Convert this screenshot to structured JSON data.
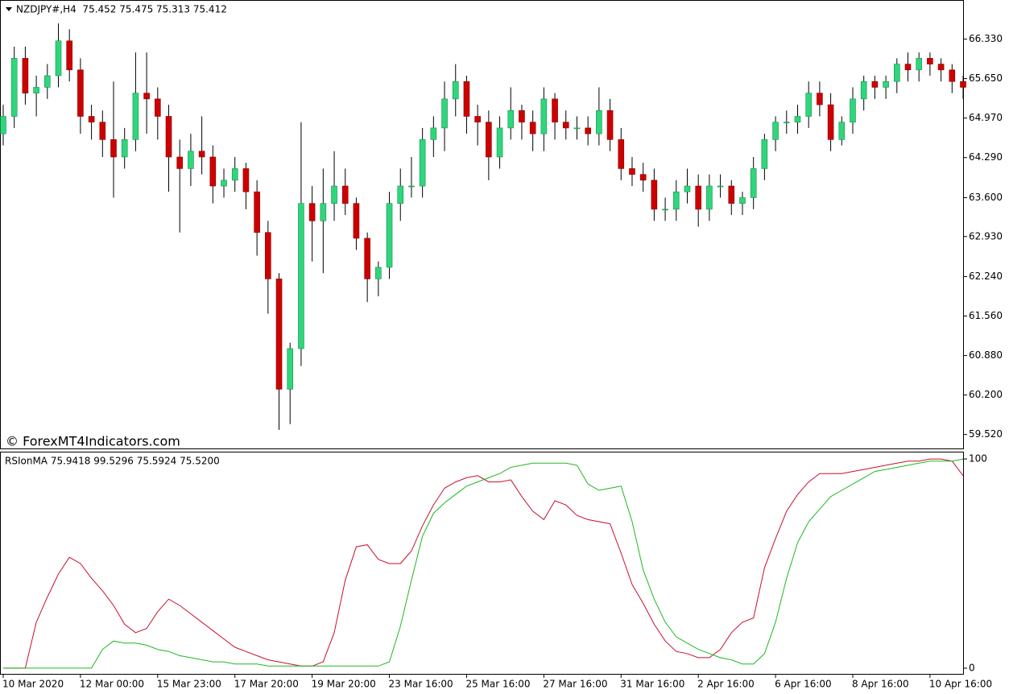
{
  "chart_data": [
    {
      "type": "candlestick",
      "title": "NZDJPY#,H4  75.452 75.475 75.313 75.412",
      "annotation": "© ForexMT4Indicators.com",
      "up_color": "#2fd67b",
      "down_color": "#cc0000",
      "open": [
        64.7,
        65.0,
        66.0,
        65.4,
        65.5,
        65.7,
        66.3,
        65.8,
        65.0,
        64.9,
        64.6,
        64.3,
        64.6,
        65.4,
        65.3,
        65.0,
        64.3,
        64.1,
        64.4,
        64.3,
        63.8,
        63.9,
        64.1,
        63.7,
        63.0,
        62.2,
        60.3,
        61.0,
        63.5,
        63.2,
        63.5,
        63.8,
        63.5,
        62.9,
        62.2,
        62.4,
        63.5,
        63.8,
        63.8,
        64.6,
        64.8,
        65.3,
        65.6,
        65.0,
        64.9,
        64.3,
        64.8,
        65.1,
        64.9,
        64.7,
        65.3,
        64.9,
        64.8,
        64.8,
        64.7,
        65.1,
        64.6,
        64.1,
        64.0,
        63.9,
        63.4,
        63.4,
        63.7,
        63.8,
        63.4,
        63.8,
        63.8,
        63.5,
        63.6,
        64.1,
        64.6,
        64.9,
        64.9,
        65.0,
        65.4,
        65.2,
        64.6,
        64.9,
        65.3,
        65.6,
        65.5,
        65.6,
        65.9,
        65.8,
        66.0,
        65.9,
        65.8,
        65.6
      ],
      "high": [
        65.2,
        66.2,
        66.2,
        65.7,
        65.9,
        66.6,
        66.5,
        66.0,
        65.2,
        65.1,
        65.6,
        64.8,
        66.1,
        66.1,
        65.5,
        65.2,
        64.6,
        64.7,
        65.0,
        64.5,
        64.1,
        64.3,
        64.2,
        63.9,
        63.2,
        62.3,
        61.1,
        64.9,
        63.8,
        64.1,
        64.4,
        64.1,
        63.6,
        63.0,
        62.5,
        63.7,
        64.1,
        64.3,
        64.8,
        65.0,
        65.6,
        65.9,
        65.7,
        65.2,
        65.1,
        65.0,
        65.5,
        65.2,
        65.1,
        65.5,
        65.4,
        65.1,
        65.0,
        65.0,
        65.5,
        65.3,
        64.8,
        64.3,
        64.2,
        64.1,
        63.6,
        63.9,
        64.1,
        64.0,
        64.0,
        64.0,
        63.9,
        63.7,
        64.3,
        64.7,
        65.0,
        65.1,
        65.2,
        65.6,
        65.6,
        65.4,
        65.0,
        65.5,
        65.7,
        65.7,
        65.7,
        66.0,
        66.1,
        66.1,
        66.1,
        66.0,
        65.9,
        65.7
      ],
      "low": [
        64.5,
        64.8,
        65.2,
        65.0,
        65.3,
        65.5,
        65.6,
        64.7,
        64.6,
        64.3,
        63.6,
        64.1,
        64.4,
        64.7,
        64.6,
        63.7,
        63.0,
        63.8,
        64.0,
        63.5,
        63.6,
        63.7,
        63.4,
        62.6,
        61.6,
        59.6,
        59.7,
        60.7,
        62.5,
        62.3,
        63.2,
        63.3,
        62.7,
        61.8,
        61.9,
        62.2,
        63.2,
        63.6,
        63.6,
        64.3,
        64.4,
        65.0,
        64.7,
        64.5,
        63.9,
        64.1,
        64.6,
        64.6,
        64.4,
        64.4,
        64.6,
        64.6,
        64.6,
        64.5,
        64.5,
        64.4,
        63.9,
        63.8,
        63.7,
        63.2,
        63.2,
        63.2,
        63.5,
        63.1,
        63.2,
        63.6,
        63.3,
        63.3,
        63.4,
        63.9,
        64.4,
        64.7,
        64.7,
        64.8,
        65.0,
        64.4,
        64.5,
        64.7,
        65.1,
        65.3,
        65.3,
        65.4,
        65.6,
        65.6,
        65.7,
        65.6,
        65.4,
        65.3
      ],
      "close": [
        65.0,
        66.0,
        65.4,
        65.5,
        65.7,
        66.3,
        65.8,
        65.0,
        64.9,
        64.6,
        64.3,
        64.6,
        65.4,
        65.3,
        65.0,
        64.3,
        64.1,
        64.4,
        64.3,
        63.8,
        63.9,
        64.1,
        63.7,
        63.0,
        62.2,
        60.3,
        61.0,
        63.5,
        63.2,
        63.5,
        63.8,
        63.5,
        62.9,
        62.2,
        62.4,
        63.5,
        63.8,
        63.8,
        64.6,
        64.8,
        65.3,
        65.6,
        65.0,
        64.9,
        64.3,
        64.8,
        65.1,
        64.9,
        64.7,
        65.3,
        64.9,
        64.8,
        64.8,
        64.7,
        65.1,
        64.6,
        64.1,
        64.0,
        63.9,
        63.4,
        63.4,
        63.7,
        63.8,
        63.4,
        63.8,
        63.8,
        63.5,
        63.6,
        64.1,
        64.6,
        64.9,
        64.9,
        65.0,
        65.4,
        65.2,
        64.6,
        64.9,
        65.3,
        65.6,
        65.5,
        65.6,
        65.9,
        65.8,
        66.0,
        65.9,
        65.8,
        65.6,
        65.5
      ],
      "ylim": [
        59.28,
        66.99
      ],
      "yticks": [
        {
          "value": 66.33,
          "label": "66.330"
        },
        {
          "value": 65.65,
          "label": "65.650"
        },
        {
          "value": 64.97,
          "label": "64.970"
        },
        {
          "value": 64.29,
          "label": "64.290"
        },
        {
          "value": 63.6,
          "label": "63.600"
        },
        {
          "value": 62.93,
          "label": "62.930"
        },
        {
          "value": 62.24,
          "label": "62.240"
        },
        {
          "value": 61.56,
          "label": "61.560"
        },
        {
          "value": 60.88,
          "label": "60.880"
        },
        {
          "value": 60.2,
          "label": "60.200"
        },
        {
          "value": 59.52,
          "label": "59.520"
        }
      ]
    },
    {
      "type": "line",
      "title": "RSIonMA 75.9418 99.5296 75.5924 75.5200",
      "categories": [
        "10 Mar 2020",
        null,
        null,
        null,
        null,
        null,
        null,
        "12 Mar 00:00",
        null,
        null,
        null,
        null,
        null,
        null,
        "15 Mar 23:00",
        null,
        null,
        null,
        null,
        null,
        null,
        "17 Mar 20:00",
        null,
        null,
        null,
        null,
        null,
        null,
        "19 Mar 20:00",
        null,
        null,
        null,
        null,
        null,
        null,
        "23 Mar 16:00",
        null,
        null,
        null,
        null,
        null,
        null,
        "25 Mar 16:00",
        null,
        null,
        null,
        null,
        null,
        null,
        "27 Mar 16:00",
        null,
        null,
        null,
        null,
        null,
        null,
        "31 Mar 16:00",
        null,
        null,
        null,
        null,
        null,
        null,
        "2 Apr 16:00",
        null,
        null,
        null,
        null,
        null,
        null,
        "6 Apr 16:00",
        null,
        null,
        null,
        null,
        null,
        null,
        "8 Apr 16:00",
        null,
        null,
        null,
        null,
        null,
        null,
        "10 Apr 16:00",
        null,
        null,
        null
      ],
      "series": [
        {
          "color": "#c8102e",
          "values": [
            0,
            0,
            0,
            22,
            34,
            45,
            53,
            50,
            43,
            37,
            30,
            21,
            17,
            19,
            27,
            33,
            30,
            26,
            22,
            18,
            14,
            10,
            8,
            6,
            4,
            3,
            2,
            1,
            1,
            3,
            17,
            42,
            58,
            59,
            52,
            50,
            50,
            56,
            68,
            78,
            86,
            89,
            91,
            92,
            89,
            89,
            90,
            82,
            75,
            71,
            80,
            78,
            73,
            71,
            70,
            69,
            55,
            40,
            31,
            21,
            13,
            8,
            7,
            5,
            5,
            9,
            17,
            22,
            24,
            48,
            62,
            75,
            83,
            89,
            93,
            93,
            93,
            94,
            95,
            96,
            97,
            98,
            99,
            99,
            100,
            100,
            99,
            92
          ]
        },
        {
          "color": "#1fb81f",
          "values": [
            0,
            0,
            0,
            0,
            0,
            0,
            0,
            0,
            0,
            9,
            13,
            12,
            12,
            11,
            9,
            8,
            6,
            5,
            4,
            3,
            3,
            2,
            2,
            2,
            1,
            1,
            1,
            1,
            1,
            1,
            1,
            1,
            1,
            1,
            1,
            3,
            20,
            42,
            63,
            74,
            79,
            83,
            87,
            89,
            91,
            93,
            96,
            97,
            98,
            98,
            98,
            98,
            97,
            88,
            85,
            86,
            87,
            70,
            47,
            33,
            22,
            15,
            12,
            9,
            7,
            5,
            4,
            2,
            2,
            7,
            22,
            43,
            60,
            70,
            76,
            82,
            85,
            88,
            91,
            94,
            95,
            96,
            97,
            98,
            99,
            99,
            99,
            100
          ]
        }
      ],
      "ylim": [
        -3.1,
        103.1
      ],
      "yticks": [
        0,
        100
      ]
    }
  ]
}
